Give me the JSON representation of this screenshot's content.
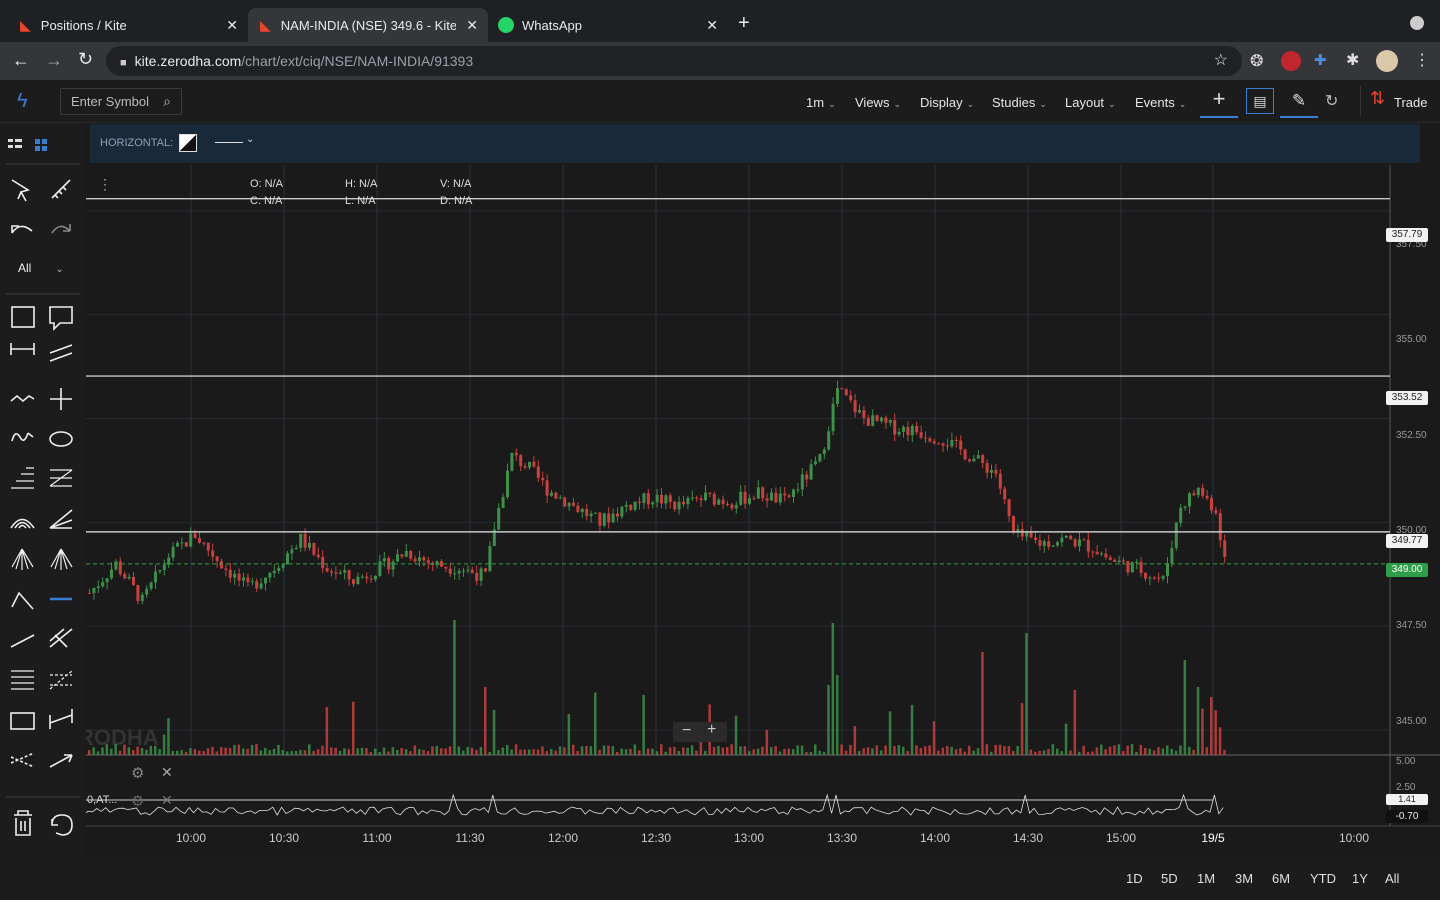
{
  "browser": {
    "tabs": [
      {
        "title": "Positions / Kite",
        "active": false
      },
      {
        "title": "NAM-INDIA (NSE) 349.6 - Kite",
        "active": true
      },
      {
        "title": "WhatsApp",
        "active": false
      }
    ],
    "url_host": "kite.zerodha.com",
    "url_path": "/chart/ext/ciq/NSE/NAM-INDIA/91393"
  },
  "toolbar": {
    "symbol_placeholder": "Enter Symbol",
    "menus": [
      "1m",
      "Views",
      "Display",
      "Studies",
      "Layout",
      "Events"
    ],
    "trade_label": "Trade"
  },
  "left_tools": {
    "filter_label": "All"
  },
  "drawing_bar": {
    "label": "HORIZONTAL:"
  },
  "ohlc": {
    "o": "O: N/A",
    "h": "H: N/A",
    "v": "V: N/A",
    "c": "C: N/A",
    "l": "L: N/A",
    "d": "D: N/A"
  },
  "chart_data": {
    "type": "candlestick",
    "symbol": "NAM-INDIA (NSE)",
    "interval": "1m",
    "y_ticks": [
      "357.50",
      "355.00",
      "352.50",
      "350.00",
      "347.50",
      "345.00"
    ],
    "x_ticks": [
      "10:00",
      "10:30",
      "11:00",
      "11:30",
      "12:00",
      "12:30",
      "13:00",
      "13:30",
      "14:00",
      "14:30",
      "15:00",
      "19/5",
      "10:00"
    ],
    "ylim": [
      344.4,
      358.6
    ],
    "horizontal_lines": [
      357.79,
      353.52,
      349.77
    ],
    "current_price": "349.00",
    "horizontal_labels": [
      "357.79",
      "353.52",
      "349.77"
    ],
    "price_trace": [
      [
        0,
        348.3
      ],
      [
        6,
        349.0
      ],
      [
        12,
        348.1
      ],
      [
        18,
        349.2
      ],
      [
        24,
        349.7
      ],
      [
        30,
        349.0
      ],
      [
        36,
        348.4
      ],
      [
        42,
        348.9
      ],
      [
        48,
        349.6
      ],
      [
        54,
        348.9
      ],
      [
        60,
        348.6
      ],
      [
        66,
        348.9
      ],
      [
        72,
        349.3
      ],
      [
        78,
        349.0
      ],
      [
        84,
        348.9
      ],
      [
        90,
        348.7
      ],
      [
        92,
        349.9
      ],
      [
        96,
        351.6
      ],
      [
        100,
        351.3
      ],
      [
        104,
        350.8
      ],
      [
        110,
        350.4
      ],
      [
        116,
        350.0
      ],
      [
        122,
        350.4
      ],
      [
        128,
        350.6
      ],
      [
        134,
        350.4
      ],
      [
        140,
        350.6
      ],
      [
        146,
        350.5
      ],
      [
        152,
        350.7
      ],
      [
        158,
        350.5
      ],
      [
        166,
        351.5
      ],
      [
        170,
        353.2
      ],
      [
        176,
        352.5
      ],
      [
        182,
        352.3
      ],
      [
        188,
        352.2
      ],
      [
        194,
        352.0
      ],
      [
        200,
        351.6
      ],
      [
        206,
        351.2
      ],
      [
        210,
        349.7
      ],
      [
        216,
        349.5
      ],
      [
        222,
        349.6
      ],
      [
        228,
        349.4
      ],
      [
        232,
        349.1
      ],
      [
        238,
        348.9
      ],
      [
        244,
        348.6
      ],
      [
        248,
        350.4
      ],
      [
        252,
        350.8
      ],
      [
        256,
        350.3
      ],
      [
        258,
        349.1
      ]
    ],
    "volume_axis": {
      "top": "5.00"
    },
    "study": {
      "name": "0,AT...",
      "values": [
        "2.50",
        "1.41",
        "-0.70"
      ]
    }
  },
  "ranges": [
    "1D",
    "5D",
    "1M",
    "3M",
    "6M",
    "YTD",
    "1Y",
    "All"
  ],
  "colors": {
    "up": "#3d8f4a",
    "down": "#c7413f",
    "current": "#2f9e48",
    "bg": "#1a1a1a"
  }
}
